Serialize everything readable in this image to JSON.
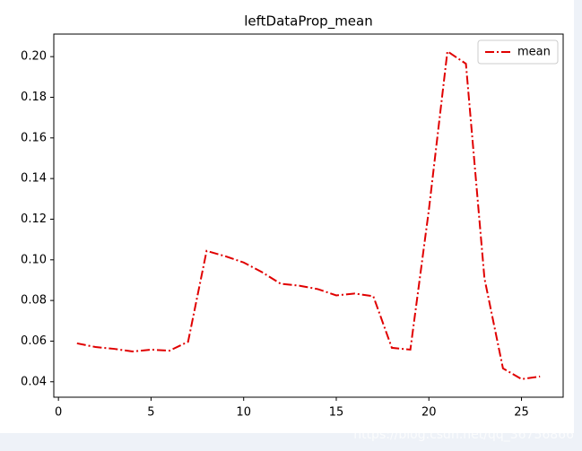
{
  "chart_data": {
    "type": "line",
    "title": "leftDataProp_mean",
    "x": [
      1,
      2,
      3,
      4,
      5,
      6,
      7,
      8,
      9,
      10,
      11,
      12,
      13,
      14,
      15,
      16,
      17,
      18,
      19,
      20,
      21,
      22,
      23,
      24,
      25,
      26
    ],
    "series": [
      {
        "name": "mean",
        "color": "#e00000",
        "values": [
          0.0589,
          0.0571,
          0.0562,
          0.0549,
          0.0558,
          0.0553,
          0.0597,
          0.1044,
          0.1018,
          0.0987,
          0.0939,
          0.0882,
          0.0873,
          0.0856,
          0.0825,
          0.0834,
          0.0821,
          0.0567,
          0.0558,
          0.1246,
          0.2026,
          0.1965,
          0.0909,
          0.0466,
          0.0413,
          0.0426
        ]
      }
    ],
    "xlim": [
      -0.25,
      27.25
    ],
    "xticks": [
      0,
      5,
      10,
      15,
      20,
      25
    ],
    "ylim": [
      0.0324,
      0.2111
    ],
    "yticks": [
      {
        "value": 0.04,
        "label": "0.04"
      },
      {
        "value": 0.06,
        "label": "0.06"
      },
      {
        "value": 0.08,
        "label": "0.08"
      },
      {
        "value": 0.1,
        "label": "0.10"
      },
      {
        "value": 0.12,
        "label": "0.12"
      },
      {
        "value": 0.14,
        "label": "0.14"
      },
      {
        "value": 0.16,
        "label": "0.16"
      },
      {
        "value": 0.18,
        "label": "0.18"
      },
      {
        "value": 0.2,
        "label": "0.20"
      }
    ],
    "legend": "upper right",
    "grid": false,
    "watermark": "https://blog.csdn.net/qq_36756866"
  }
}
